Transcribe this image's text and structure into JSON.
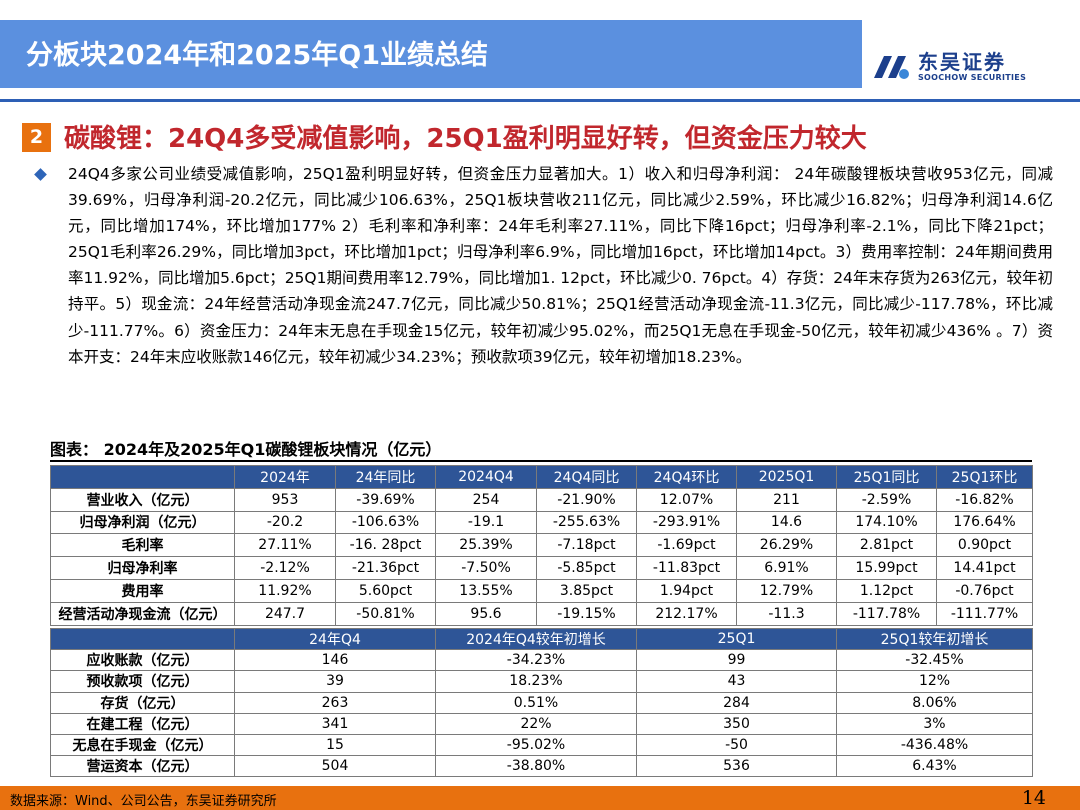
{
  "header": {
    "title": "分板块2024年和2025年Q1业绩总结",
    "logo_cn": "东吴证券",
    "logo_en": "SOOCHOW SECURITIES"
  },
  "section": {
    "number": "2",
    "title": "碳酸锂：24Q4多受减值影响，25Q1盈利明显好转，但资金压力较大"
  },
  "body_paragraph": "24Q4多家公司业绩受减值影响，25Q1盈利明显好转，但资金压力显著加大。1）收入和归母净利润： 24年碳酸锂板块营收953亿元，同减39.69%，归母净利润-20.2亿元，同比减少106.63%，25Q1板块营收211亿元，同比减少2.59%，环比减少16.82%；归母净利润14.6亿元，同比增加174%，环比增加177% 2）毛利率和净利率：24年毛利率27.11%，同比下降16pct；归母净利率-2.1%，同比下降21pct；25Q1毛利率26.29%，同比增加3pct，环比增加1pct；归母净利率6.9%，同比增加16pct，环比增加14pct。3）费用率控制：24年期间费用率11.92%，同比增加5.6pct；25Q1期间费用率12.79%，同比增加1. 12pct，环比减少0. 76pct。4）存货：24年末存货为263亿元，较年初持平。5）现金流：24年经营活动净现金流247.7亿元，同比减少50.81%；25Q1经营活动净现金流-11.3亿元，同比减少-117.78%，环比减少-111.77%。6）资金压力：24年末无息在手现金15亿元，较年初减少95.02%，而25Q1无息在手现金-50亿元，较年初减少436% 。7）资本开支：24年末应收账款146亿元，较年初减少34.23%；预收款项39亿元，较年初增加18.23%。",
  "table_caption": "图表： 2024年及2025年Q1碳酸锂板块情况（亿元）",
  "table1": {
    "headers": [
      "",
      "2024年",
      "24年同比",
      "2024Q4",
      "24Q4同比",
      "24Q4环比",
      "2025Q1",
      "25Q1同比",
      "25Q1环比"
    ],
    "rows": [
      [
        "营业收入（亿元）",
        "953",
        "-39.69%",
        "254",
        "-21.90%",
        "12.07%",
        "211",
        "-2.59%",
        "-16.82%"
      ],
      [
        "归母净利润（亿元）",
        "-20.2",
        "-106.63%",
        "-19.1",
        "-255.63%",
        "-293.91%",
        "14.6",
        "174.10%",
        "176.64%"
      ],
      [
        "毛利率",
        "27.11%",
        "-16. 28pct",
        "25.39%",
        "-7.18pct",
        "-1.69pct",
        "26.29%",
        "2.81pct",
        "0.90pct"
      ],
      [
        "归母净利率",
        "-2.12%",
        "-21.36pct",
        "-7.50%",
        "-5.85pct",
        "-11.83pct",
        "6.91%",
        "15.99pct",
        "14.41pct"
      ],
      [
        "费用率",
        "11.92%",
        "5.60pct",
        "13.55%",
        "3.85pct",
        "1.94pct",
        "12.79%",
        "1.12pct",
        "-0.76pct"
      ],
      [
        "经营活动净现金流（亿元）",
        "247.7",
        "-50.81%",
        "95.6",
        "-19.15%",
        "212.17%",
        "-11.3",
        "-117.78%",
        "-111.77%"
      ]
    ]
  },
  "table2": {
    "headers": [
      "",
      "24年Q4",
      "2024年Q4较年初增长",
      "25Q1",
      "25Q1较年初增长"
    ],
    "rows": [
      [
        "应收账款（亿元）",
        "146",
        "-34.23%",
        "99",
        "-32.45%"
      ],
      [
        "预收款项（亿元）",
        "39",
        "18.23%",
        "43",
        "12%"
      ],
      [
        "存货（亿元）",
        "263",
        "0.51%",
        "284",
        "8.06%"
      ],
      [
        "在建工程（亿元）",
        "341",
        "22%",
        "350",
        "3%"
      ],
      [
        "无息在手现金（亿元）",
        "15",
        "-95.02%",
        "-50",
        "-436.48%"
      ],
      [
        "营运资本（亿元）",
        "504",
        "-38.80%",
        "536",
        "6.43%"
      ]
    ]
  },
  "footer": {
    "source": "数据来源：Wind、公司公告，东吴证券研究所",
    "page_number": "14"
  },
  "colors": {
    "title_bar": "#5b90df",
    "accent_orange": "#e8710f",
    "section_title_red": "#c1272d",
    "table_header": "#2e5597",
    "brand_blue": "#1c3f8c"
  }
}
